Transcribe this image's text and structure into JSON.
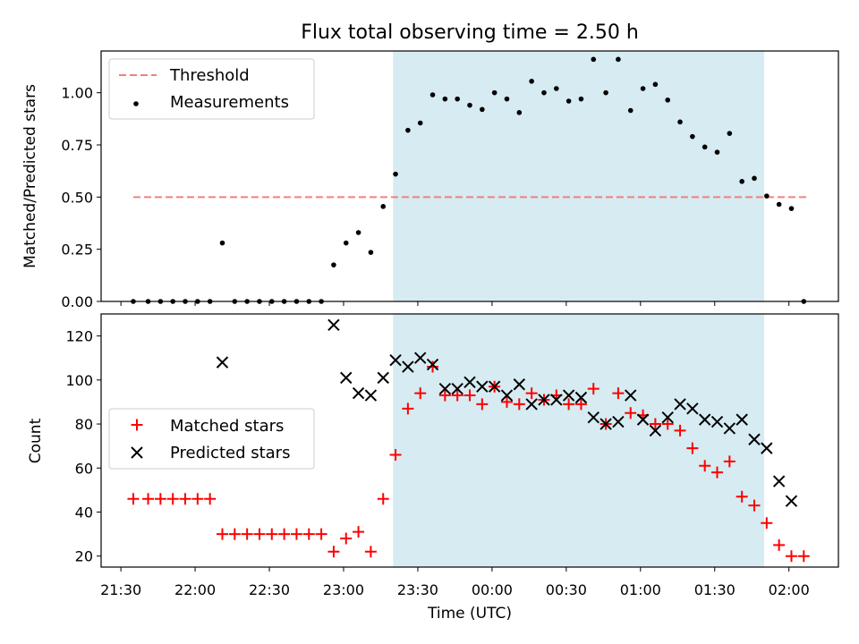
{
  "chart_data": {
    "title": "Flux total observing time = 2.50 h",
    "xlabel": "Time (UTC)",
    "x_tick_labels": [
      "21:30",
      "22:00",
      "22:30",
      "23:00",
      "23:30",
      "00:00",
      "00:30",
      "01:00",
      "01:30",
      "02:00"
    ],
    "x_ticks": [
      "21:30",
      "22:00",
      "22:30",
      "23:00",
      "23:30",
      "24:00",
      "24:30",
      "25:00",
      "25:30",
      "26:00"
    ],
    "xlim": [
      "21:22",
      "26:20"
    ],
    "shaded_interval": [
      "23:20",
      "25:50"
    ],
    "shade_color": "#add8e6",
    "panels": [
      {
        "type": "scatter",
        "ylabel": "Matched/Predicted stars",
        "ylim": [
          0,
          1.2
        ],
        "yticks": [
          0.0,
          0.25,
          0.5,
          0.75,
          1.0
        ],
        "ytick_labels": [
          "0.00",
          "0.25",
          "0.50",
          "0.75",
          "1.00"
        ],
        "legend_position": "top-left",
        "threshold": {
          "name": "Threshold",
          "value": 0.5,
          "x_range": [
            "21:35",
            "26:07"
          ],
          "color": "#f08080"
        },
        "series": [
          {
            "name": "Measurements",
            "marker": "dot",
            "color": "#000000",
            "x": [
              "21:35",
              "21:41",
              "21:46",
              "21:51",
              "21:56",
              "22:01",
              "22:06",
              "22:11",
              "22:16",
              "22:21",
              "22:26",
              "22:31",
              "22:36",
              "22:41",
              "22:46",
              "22:51",
              "22:56",
              "23:01",
              "23:06",
              "23:11",
              "23:16",
              "23:21",
              "23:26",
              "23:31",
              "23:36",
              "23:41",
              "23:46",
              "23:51",
              "23:56",
              "24:01",
              "24:06",
              "24:11",
              "24:16",
              "24:21",
              "24:26",
              "24:31",
              "24:36",
              "24:41",
              "24:46",
              "24:51",
              "24:56",
              "25:01",
              "25:06",
              "25:11",
              "25:16",
              "25:21",
              "25:26",
              "25:31",
              "25:36",
              "25:41",
              "25:46",
              "25:51",
              "25:56",
              "26:01",
              "26:06"
            ],
            "y": [
              0,
              0,
              0,
              0,
              0,
              0,
              0,
              0.28,
              0,
              0,
              0,
              0,
              0,
              0,
              0,
              0,
              0.175,
              0.28,
              0.33,
              0.235,
              0.455,
              0.61,
              0.82,
              0.855,
              0.99,
              0.97,
              0.97,
              0.94,
              0.92,
              1.0,
              0.97,
              0.905,
              1.055,
              1.0,
              1.02,
              0.96,
              0.97,
              1.16,
              1.0,
              1.16,
              0.915,
              1.02,
              1.04,
              0.965,
              0.86,
              0.79,
              0.74,
              0.715,
              0.805,
              0.575,
              0.59,
              0.505,
              0.465,
              0.445,
              0
            ]
          }
        ]
      },
      {
        "type": "scatter",
        "ylabel": "Count",
        "ylim": [
          15,
          130
        ],
        "yticks": [
          20,
          40,
          60,
          80,
          100,
          120
        ],
        "ytick_labels": [
          "20",
          "40",
          "60",
          "80",
          "100",
          "120"
        ],
        "legend_position": "center-left",
        "series": [
          {
            "name": "Matched stars",
            "marker": "plus",
            "color": "#ff0000",
            "x": [
              "21:35",
              "21:41",
              "21:46",
              "21:51",
              "21:56",
              "22:01",
              "22:06",
              "22:11",
              "22:16",
              "22:21",
              "22:26",
              "22:31",
              "22:36",
              "22:41",
              "22:46",
              "22:51",
              "22:56",
              "23:01",
              "23:06",
              "23:11",
              "23:16",
              "23:21",
              "23:26",
              "23:31",
              "23:36",
              "23:41",
              "23:46",
              "23:51",
              "23:56",
              "24:01",
              "24:06",
              "24:11",
              "24:16",
              "24:21",
              "24:26",
              "24:31",
              "24:36",
              "24:41",
              "24:46",
              "24:51",
              "24:56",
              "25:01",
              "25:06",
              "25:11",
              "25:16",
              "25:21",
              "25:26",
              "25:31",
              "25:36",
              "25:41",
              "25:46",
              "25:51",
              "25:56",
              "26:01",
              "26:06"
            ],
            "y": [
              46,
              46,
              46,
              46,
              46,
              46,
              46,
              30,
              30,
              30,
              30,
              30,
              30,
              30,
              30,
              30,
              22,
              28,
              31,
              22,
              46,
              66,
              87,
              94,
              106,
              93,
              93,
              93,
              89,
              97,
              90,
              89,
              94,
              91,
              93,
              89,
              89,
              96,
              80,
              94,
              85,
              84,
              80,
              80,
              77,
              69,
              61,
              58,
              63,
              47,
              43,
              35,
              25,
              20,
              20
            ]
          },
          {
            "name": "Predicted stars",
            "marker": "x",
            "color": "#000000",
            "x": [
              "22:11",
              "22:56",
              "23:01",
              "23:06",
              "23:11",
              "23:16",
              "23:21",
              "23:26",
              "23:31",
              "23:36",
              "23:41",
              "23:46",
              "23:51",
              "23:56",
              "24:01",
              "24:06",
              "24:11",
              "24:16",
              "24:21",
              "24:26",
              "24:31",
              "24:36",
              "24:41",
              "24:46",
              "24:51",
              "24:56",
              "25:01",
              "25:06",
              "25:11",
              "25:16",
              "25:21",
              "25:26",
              "25:31",
              "25:36",
              "25:41",
              "25:46",
              "25:51",
              "25:56",
              "26:01"
            ],
            "y": [
              108,
              125,
              101,
              94,
              93,
              101,
              109,
              106,
              110,
              107,
              96,
              96,
              99,
              97,
              97,
              93,
              98,
              89,
              91,
              91,
              93,
              92,
              83,
              80,
              81,
              93,
              82,
              77,
              83,
              89,
              87,
              82,
              81,
              78,
              82,
              73,
              69,
              54,
              45
            ]
          }
        ]
      }
    ]
  }
}
